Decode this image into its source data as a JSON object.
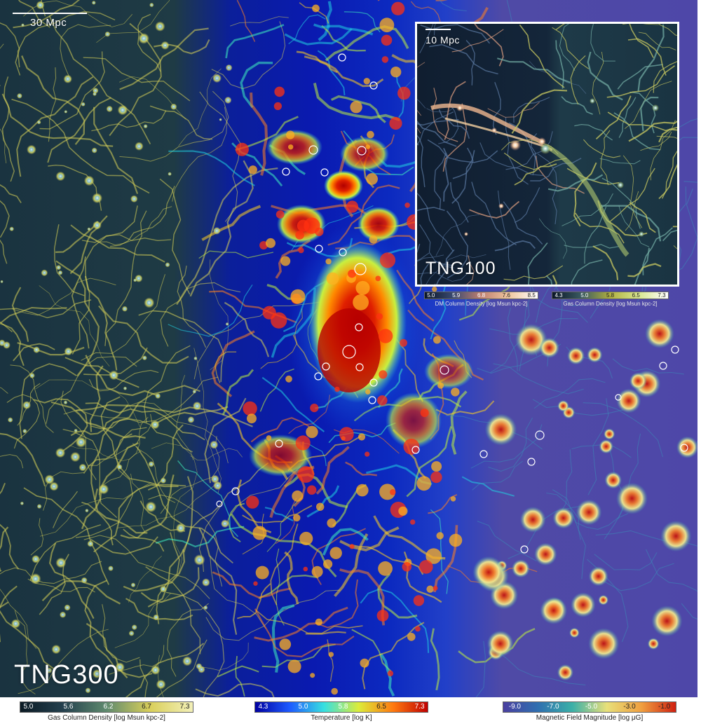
{
  "main_panel": {
    "scalebar_label": "30 Mpc",
    "simulation_label": "TNG300"
  },
  "inset": {
    "scalebar_label": "10 Mpc",
    "simulation_label": "TNG100",
    "colorbars": [
      {
        "label": "DM Column Density [log Msun kpc-2]",
        "ticks": [
          "5.0",
          "5.9",
          "6.8",
          "7.6",
          "8.5"
        ]
      },
      {
        "label": "Gas Column Density [log Msun kpc-2]",
        "ticks": [
          "4.3",
          "5.0",
          "5.8",
          "6.5",
          "7.3"
        ]
      }
    ]
  },
  "bottom_colorbars": [
    {
      "label": "Gas Column Density [log Msun kpc-2]",
      "ticks": [
        "5.0",
        "5.6",
        "6.2",
        "6.7",
        "7.3"
      ]
    },
    {
      "label": "Temperature [log K]",
      "ticks": [
        "4.3",
        "5.0",
        "5.8",
        "6.5",
        "7.3"
      ]
    },
    {
      "label": "Magnetic Field Magnitude [log μG]",
      "ticks": [
        "-9.0",
        "-7.0",
        "-5.0",
        "-3.0",
        "-1.0"
      ]
    }
  ],
  "colors": {
    "gas_cmap": [
      "#0b1a24",
      "#24404e",
      "#5f8a6e",
      "#d9cf5a",
      "#f3f0b8"
    ],
    "temperature_cmap": [
      "#0000a0",
      "#1e5aff",
      "#37e0e0",
      "#dcec3a",
      "#ff7a10",
      "#c00000"
    ],
    "magnetic_cmap": [
      "#4a3fa0",
      "#2f6fb0",
      "#3bb0a8",
      "#e8e07a",
      "#f0a040",
      "#d02010"
    ],
    "dm_cmap": [
      "#0a1628",
      "#3a4a70",
      "#c08070",
      "#f0c8a0",
      "#ffffff"
    ],
    "inset_gas_cmap": [
      "#0a1628",
      "#3a5a60",
      "#b0b040",
      "#d8e890",
      "#ffffff"
    ]
  }
}
